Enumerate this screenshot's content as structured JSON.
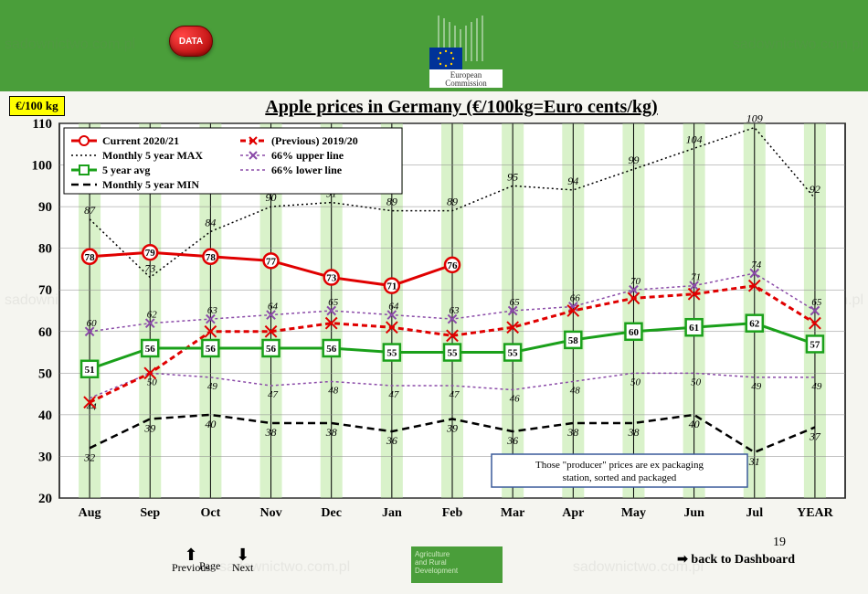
{
  "header": {
    "data_badge": "DATA",
    "ec_label": "European\nCommission"
  },
  "chart": {
    "title": "Apple prices in Germany (€/100kg=Euro cents/kg)",
    "ylabel_badge": "€/100 kg",
    "categories": [
      "Aug",
      "Sep",
      "Oct",
      "Nov",
      "Dec",
      "Jan",
      "Feb",
      "Mar",
      "Apr",
      "May",
      "Jun",
      "Jul",
      "YEAR"
    ],
    "ylim": [
      20,
      110
    ],
    "ytick_step": 10,
    "series": {
      "current": {
        "label": "Current 2020/21",
        "color": "#e00000",
        "marker_fill": "#ffffff",
        "linewidth": 3,
        "marker": "circle",
        "marker_size": 8,
        "values": [
          78,
          79,
          78,
          77,
          73,
          71,
          76,
          null,
          null,
          null,
          null,
          null,
          null
        ]
      },
      "previous": {
        "label": "(Previous) 2019/20",
        "color": "#e00000",
        "linewidth": 3,
        "dash": "6 4",
        "marker": "x",
        "marker_size": 8,
        "values": [
          43,
          50,
          60,
          60,
          62,
          61,
          59,
          61,
          65,
          68,
          69,
          71,
          62
        ]
      },
      "max5": {
        "label": "Monthly 5 year MAX",
        "color": "#000000",
        "linewidth": 1.5,
        "dash": "2 3",
        "values": [
          87,
          73,
          84,
          90,
          91,
          89,
          89,
          95,
          94,
          99,
          104,
          109,
          92
        ]
      },
      "upper66": {
        "label": "66% upper line",
        "color": "#8b4ba8",
        "linewidth": 1.5,
        "dash": "3 3",
        "marker": "x",
        "marker_size": 6,
        "values": [
          60,
          62,
          63,
          64,
          65,
          64,
          63,
          65,
          66,
          70,
          71,
          74,
          65
        ]
      },
      "avg5": {
        "label": "5 year avg",
        "color": "#1aa01a",
        "marker_fill": "#ffffff",
        "linewidth": 3,
        "marker": "square",
        "marker_size": 9,
        "values": [
          51,
          56,
          56,
          56,
          56,
          55,
          55,
          55,
          58,
          60,
          61,
          62,
          57
        ]
      },
      "lower66": {
        "label": "66% lower line",
        "color": "#8b4ba8",
        "linewidth": 1.5,
        "dash": "3 3",
        "values": [
          44,
          50,
          49,
          47,
          48,
          47,
          47,
          46,
          48,
          50,
          50,
          49,
          49
        ]
      },
      "min5": {
        "label": "Monthly 5 year MIN",
        "color": "#000000",
        "linewidth": 2.5,
        "dash": "8 5",
        "values": [
          32,
          39,
          40,
          38,
          38,
          36,
          39,
          36,
          38,
          38,
          40,
          31,
          37
        ]
      }
    },
    "note_box": "Those \"producer\" prices are ex packaging\nstation, sorted and packaged",
    "background_stripe_color": "rgba(180,230,150,0.5)",
    "plot_bg": "#ffffff",
    "grid_color": "#888888",
    "legend_bg": "#ffffff",
    "title_fontsize": 20
  },
  "footer": {
    "prev": "Previous",
    "next": "Next",
    "page": "Page",
    "agri": "Agriculture\nand Rural\nDevelopment",
    "back": "back to Dashboard",
    "page_num": "19"
  },
  "watermark": "sadownictwo.com.pl"
}
